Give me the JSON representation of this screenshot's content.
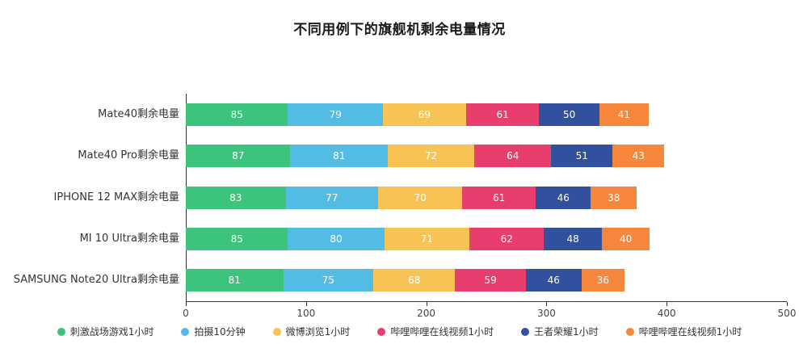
{
  "title": "不同用例下的旗舰机剩余电量情况",
  "chart_data": {
    "type": "bar",
    "orientation": "horizontal",
    "stacked": true,
    "title": "不同用例下的旗舰机剩余电量情况",
    "xlabel": "",
    "ylabel": "",
    "xlim": [
      0,
      500
    ],
    "x_ticks": [
      0,
      100,
      200,
      300,
      400,
      500
    ],
    "grid": false,
    "legend_position": "bottom",
    "categories": [
      "Mate40剩余电量",
      "Mate40 Pro剩余电量",
      "IPHONE 12 MAX剩余电量",
      "MI 10 Ultra剩余电量",
      "SAMSUNG Note20 Ultra剩余电量"
    ],
    "series": [
      {
        "name": "刺激战场游戏1小时",
        "color": "#3cc47c",
        "values": [
          85,
          87,
          83,
          85,
          81
        ]
      },
      {
        "name": "拍摄10分钟",
        "color": "#52bce4",
        "values": [
          79,
          81,
          77,
          80,
          75
        ]
      },
      {
        "name": "微博浏览1小时",
        "color": "#f7c355",
        "values": [
          69,
          72,
          70,
          71,
          68
        ]
      },
      {
        "name": "哔哩哔哩在线视频1小时",
        "color": "#e83e6d",
        "values": [
          61,
          64,
          61,
          62,
          59
        ]
      },
      {
        "name": "王者荣耀1小时",
        "color": "#31509e",
        "values": [
          50,
          51,
          46,
          48,
          46
        ]
      },
      {
        "name": "哔哩哔哩在线视频1小时",
        "color": "#f5863c",
        "values": [
          41,
          43,
          38,
          40,
          36
        ]
      }
    ]
  }
}
